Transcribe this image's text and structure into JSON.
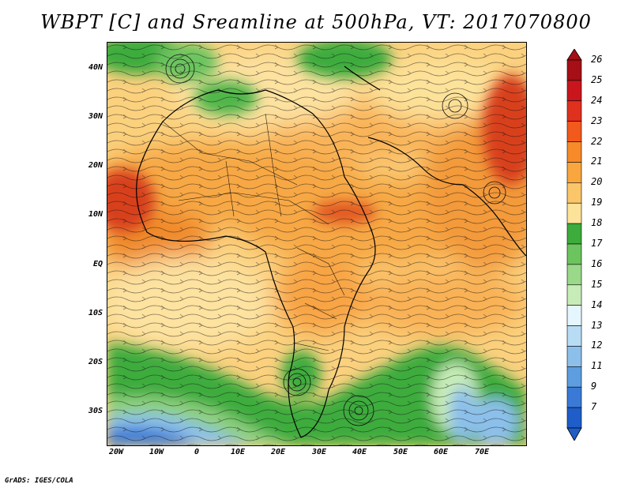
{
  "title": "WBPT [C] and Sreamline at 500hPa, VT: 2017070800",
  "lat_axis": [
    "40N",
    "30N",
    "20N",
    "10N",
    "EQ",
    "10S",
    "20S",
    "30S"
  ],
  "lon_axis": [
    "20W",
    "10W",
    "0",
    "10E",
    "20E",
    "30E",
    "40E",
    "50E",
    "60E",
    "70E"
  ],
  "colorbar": {
    "labels": [
      "26",
      "25",
      "24",
      "23",
      "22",
      "21",
      "20",
      "19",
      "18",
      "17",
      "16",
      "15",
      "14",
      "13",
      "12",
      "11",
      "9",
      "7"
    ],
    "colors": [
      "#a50f15",
      "#c8161c",
      "#e0301e",
      "#f2591c",
      "#f88a2a",
      "#f9a63e",
      "#fbc56a",
      "#fde29a",
      "#3cac3c",
      "#6cc45e",
      "#9ad88a",
      "#c8ecb8",
      "#e6f6ff",
      "#b8dcf4",
      "#8cc0ea",
      "#5e9de0",
      "#3a7ad6",
      "#1f5dc8"
    ]
  },
  "credit": "GrADS: IGES/COLA"
}
